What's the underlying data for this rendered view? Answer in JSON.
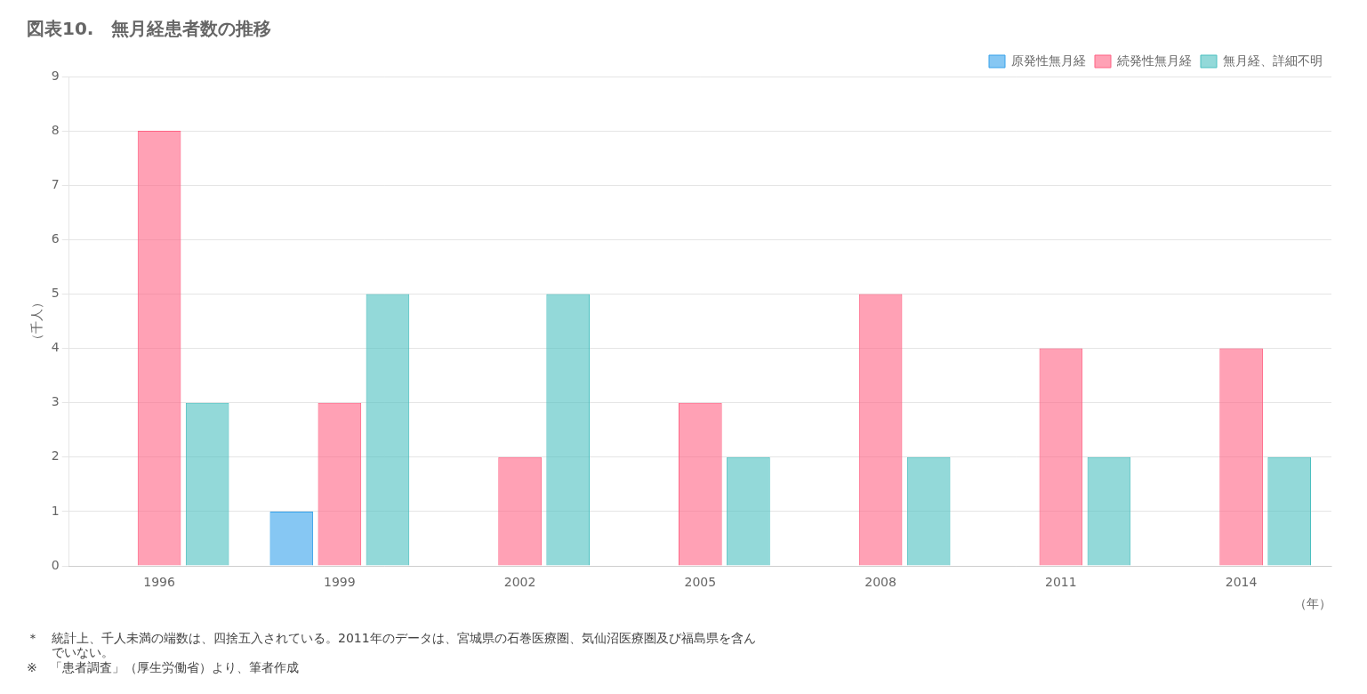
{
  "chart_data": {
    "type": "bar",
    "title": "図表10.　無月経患者数の推移",
    "ylabel": "（千人）",
    "xlabel": "（年）",
    "categories": [
      1996,
      1999,
      2002,
      2005,
      2008,
      2011,
      2014
    ],
    "series": [
      {
        "name": "原発性無月経",
        "values": [
          0,
          1,
          0,
          0,
          0,
          0,
          0
        ]
      },
      {
        "name": "続発性無月経",
        "values": [
          8,
          3,
          2,
          3,
          5,
          4,
          4
        ]
      },
      {
        "name": "無月経、詳細不明",
        "values": [
          3,
          5,
          5,
          2,
          2,
          2,
          2
        ]
      }
    ],
    "ylim": [
      0,
      9
    ],
    "yticks": [
      0,
      1,
      2,
      3,
      4,
      5,
      6,
      7,
      8,
      9
    ],
    "grid": true,
    "legend": "top",
    "annotations": [
      "＊　統計上、千人未満の端数は、四捨五入されている。2011年のデータは、宮城県の石巻医療圏、気仙沼医療圏及び福島県を含ん",
      "　　でいない。",
      "※　「患者調査」（厚生労働省）より、筆者作成"
    ]
  }
}
